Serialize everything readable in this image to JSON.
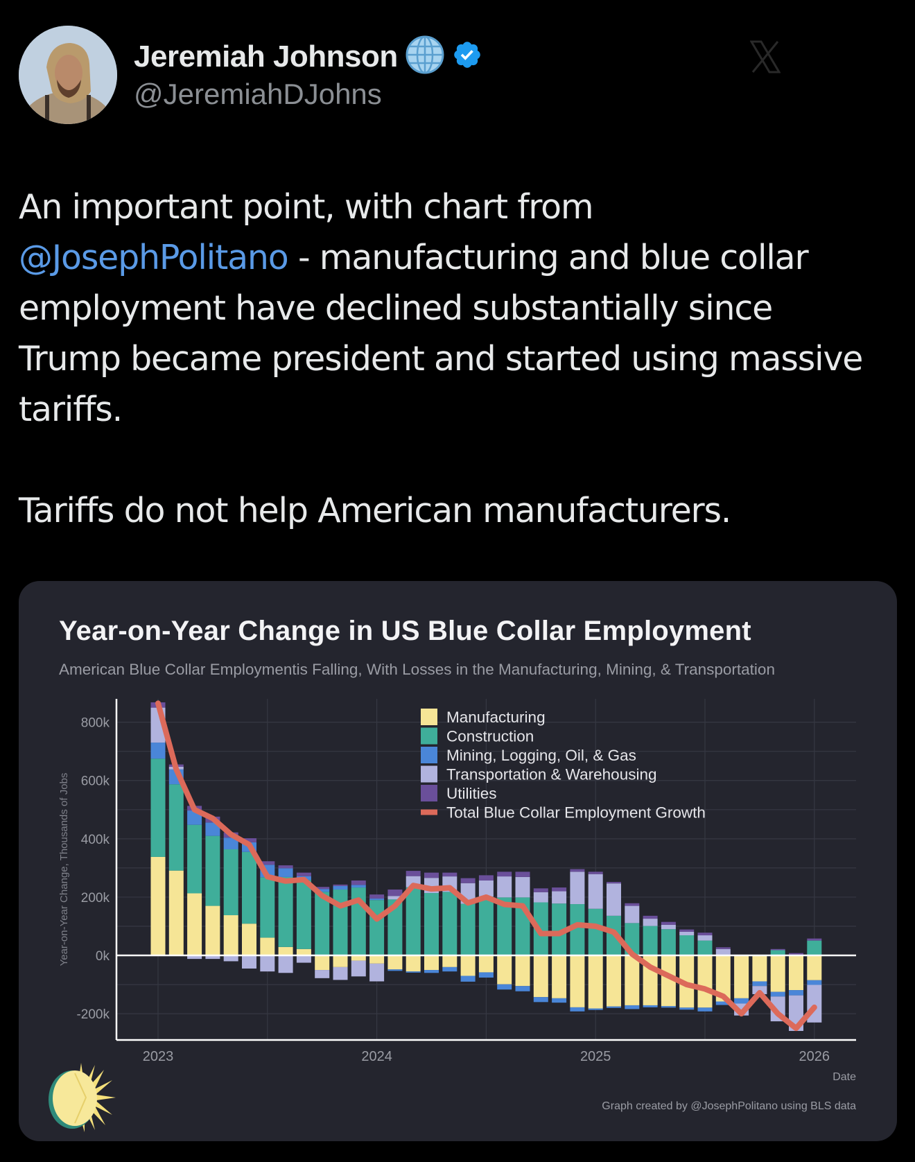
{
  "tweet": {
    "display_name": "Jeremiah Johnson",
    "handle": "@JeremiahDJohns",
    "badges": [
      "globe-icon",
      "verified-badge-icon"
    ],
    "watermark": "x-logo-icon",
    "text_lines": [
      "An important point, with chart from",
      "@JosephPolitano",
      " - manufacturing and blue collar",
      "employment have declined substantially since",
      "Trump became president and started using massive",
      "tariffs.",
      "Tariffs do not help American manufacturers."
    ],
    "mention": "@JosephPolitano",
    "colors": {
      "mention": "#5a9ae6",
      "verified": "#1d9bf0",
      "background": "#000000"
    }
  },
  "chart_data": {
    "type": "bar",
    "stacked": true,
    "title": "Year-on-Year Change in US Blue Collar Employment",
    "subtitle": "American Blue Collar Employmentis Falling, With Losses in the Manufacturing, Mining, & Transportation",
    "ylabel": "Year-on-Year Change, Thousands of Jobs",
    "xlabel": "Date",
    "ylim": [
      -290,
      880
    ],
    "yticks": [
      -200,
      0,
      200,
      400,
      600,
      800
    ],
    "ytick_labels": [
      "-200k",
      "0k",
      "200k",
      "400k",
      "600k",
      "800k"
    ],
    "xticks": [
      "2023",
      "2024",
      "2025",
      "2026"
    ],
    "xtick_positions": [
      0,
      12,
      24,
      36
    ],
    "grid": true,
    "legend_position": "top-center",
    "source": "Graph created by @JosephPolitano using BLS data",
    "categories": [
      "Jan 2023",
      "Feb 2023",
      "Mar 2023",
      "Apr 2023",
      "May 2023",
      "Jun 2023",
      "Jul 2023",
      "Aug 2023",
      "Sep 2023",
      "Oct 2023",
      "Nov 2023",
      "Dec 2023",
      "Jan 2024",
      "Feb 2024",
      "Mar 2024",
      "Apr 2024",
      "May 2024",
      "Jun 2024",
      "Jul 2024",
      "Aug 2024",
      "Sep 2024",
      "Oct 2024",
      "Nov 2024",
      "Dec 2024",
      "Jan 2025",
      "Feb 2025",
      "Mar 2025",
      "Apr 2025",
      "May 2025",
      "Jun 2025",
      "Jul 2025",
      "Aug 2025",
      "Sep 2025",
      "Oct 2025",
      "Nov 2025",
      "Dec 2025",
      "Jan 2026"
    ],
    "series": [
      {
        "name": "Manufacturing",
        "color": "#f6e596",
        "values": [
          338,
          291,
          213,
          170,
          138,
          109,
          61,
          29,
          22,
          -50,
          -40,
          -18,
          -28,
          -48,
          -55,
          -50,
          -40,
          -70,
          -58,
          -99,
          -105,
          -143,
          -147,
          -178,
          -182,
          -175,
          -171,
          -171,
          -174,
          -179,
          -179,
          -158,
          -147,
          -89,
          -125,
          -119,
          -85
        ]
      },
      {
        "name": "Construction",
        "color": "#3fae9a",
        "values": [
          337,
          296,
          235,
          240,
          226,
          246,
          207,
          240,
          237,
          218,
          226,
          233,
          190,
          192,
          234,
          214,
          218,
          177,
          202,
          199,
          199,
          182,
          178,
          176,
          160,
          136,
          111,
          101,
          90,
          69,
          51,
          0,
          0,
          0,
          18,
          0,
          51
        ]
      },
      {
        "name": "Mining, Logging, Oil, & Gas",
        "color": "#4a86d8",
        "values": [
          55,
          51,
          49,
          46,
          40,
          33,
          43,
          30,
          13,
          10,
          12,
          9,
          5,
          -5,
          -4,
          -10,
          -15,
          -20,
          -18,
          -18,
          -18,
          -17,
          -15,
          -14,
          -5,
          -5,
          -13,
          -7,
          -5,
          -7,
          -13,
          -12,
          -18,
          -16,
          -16,
          -18,
          -16
        ]
      },
      {
        "name": "Transportation & Warehousing",
        "color": "#b1b3de",
        "values": [
          120,
          9,
          -12,
          -12,
          -20,
          -45,
          -55,
          -60,
          -25,
          -28,
          -44,
          -54,
          -61,
          12,
          38,
          52,
          53,
          71,
          55,
          72,
          70,
          35,
          42,
          111,
          119,
          111,
          59,
          25,
          15,
          12,
          18,
          22,
          -41,
          -28,
          -85,
          -122,
          -129
        ]
      },
      {
        "name": "Utilities",
        "color": "#6a4f9a",
        "values": [
          18,
          8,
          16,
          20,
          18,
          14,
          12,
          10,
          12,
          7,
          5,
          15,
          14,
          22,
          18,
          18,
          13,
          17,
          18,
          16,
          18,
          13,
          13,
          9,
          8,
          5,
          9,
          10,
          10,
          8,
          9,
          6,
          0,
          0,
          4,
          8,
          7
        ]
      }
    ],
    "line": {
      "name": "Total Blue Collar Employment Growth",
      "color": "#dc6a5a",
      "values": [
        865,
        638,
        500,
        470,
        415,
        380,
        270,
        255,
        260,
        205,
        170,
        190,
        125,
        170,
        240,
        228,
        232,
        180,
        200,
        175,
        170,
        75,
        75,
        105,
        100,
        80,
        5,
        -40,
        -70,
        -100,
        -115,
        -140,
        -200,
        -128,
        -200,
        -250,
        -178
      ]
    }
  }
}
